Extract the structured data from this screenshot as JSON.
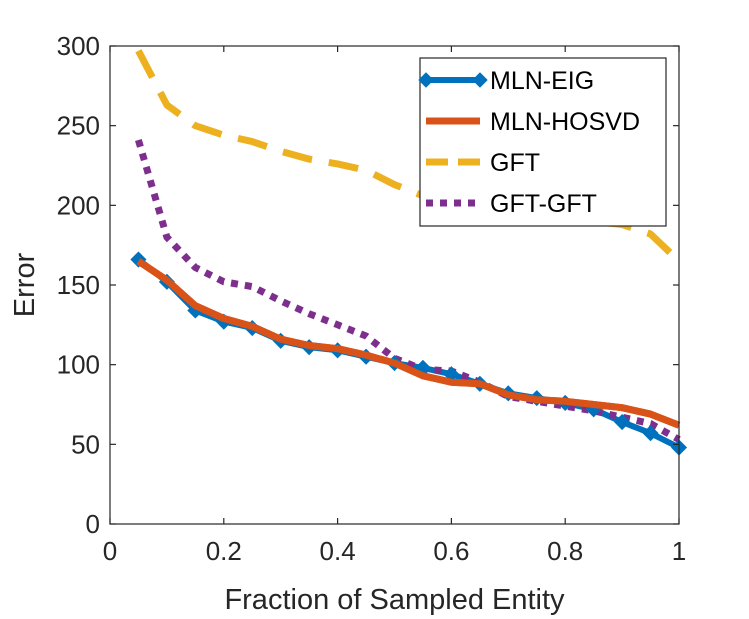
{
  "chart_data": {
    "type": "line",
    "title": "",
    "xlabel": "Fraction of Sampled Entity",
    "ylabel": "Error",
    "xlim": [
      0,
      1
    ],
    "ylim": [
      0,
      300
    ],
    "xticks": [
      0,
      0.2,
      0.4,
      0.6,
      0.8,
      1
    ],
    "xtick_labels": [
      "0",
      "0.2",
      "0.4",
      "0.6",
      "0.8",
      "1"
    ],
    "yticks": [
      0,
      50,
      100,
      150,
      200,
      250,
      300
    ],
    "ytick_labels": [
      "0",
      "50",
      "100",
      "150",
      "200",
      "250",
      "300"
    ],
    "grid": false,
    "legend_position": "top-right",
    "x": [
      0.05,
      0.1,
      0.15,
      0.2,
      0.25,
      0.3,
      0.35,
      0.4,
      0.45,
      0.5,
      0.55,
      0.6,
      0.65,
      0.7,
      0.75,
      0.8,
      0.85,
      0.9,
      0.95,
      1.0
    ],
    "series": [
      {
        "name": "MLN-EIG",
        "color": "#0072BD",
        "style": "solid-diamond",
        "values": [
          166,
          152,
          134,
          127,
          123,
          115,
          111,
          109,
          105,
          101,
          98,
          94,
          88,
          82,
          79,
          76,
          72,
          64,
          57,
          48
        ]
      },
      {
        "name": "MLN-HOSVD",
        "color": "#D95319",
        "style": "solid",
        "values": [
          165,
          153,
          137,
          129,
          124,
          116,
          112,
          110,
          106,
          101,
          93,
          89,
          88,
          81,
          78,
          77,
          75,
          73,
          69,
          62
        ]
      },
      {
        "name": "GFT",
        "color": "#EDB120",
        "style": "dashed",
        "values": [
          297,
          263,
          250,
          244,
          240,
          234,
          229,
          226,
          222,
          213,
          206,
          201,
          197,
          195,
          193,
          191,
          190,
          188,
          182,
          165
        ]
      },
      {
        "name": "GFT-GFT",
        "color": "#7E2F8E",
        "style": "dotted",
        "values": [
          241,
          180,
          161,
          152,
          149,
          140,
          132,
          125,
          118,
          104,
          97,
          96,
          89,
          80,
          77,
          74,
          71,
          67,
          63,
          53
        ]
      }
    ]
  }
}
